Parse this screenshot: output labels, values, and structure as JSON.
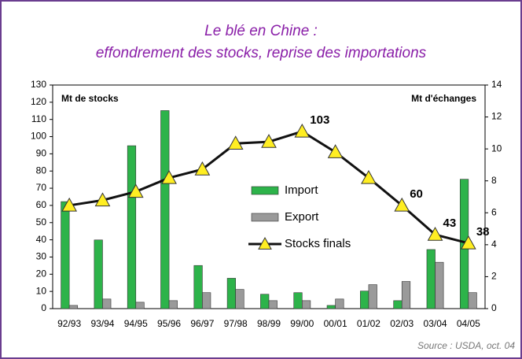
{
  "chart_data": {
    "type": "bar-line",
    "title": "Le blé en Chine :",
    "subtitle": "effondrement des stocks, reprise des importations",
    "ylabel": "Mt de stocks",
    "y2label": "Mt d'échanges",
    "source": "Source : USDA, oct. 04",
    "categories": [
      "92/93",
      "93/94",
      "94/95",
      "95/96",
      "96/97",
      "97/98",
      "98/99",
      "99/00",
      "00/01",
      "01/02",
      "02/03",
      "03/04",
      "04/05"
    ],
    "series": [
      {
        "name": "Import",
        "type": "bar",
        "axis": "y2",
        "color": "#2db34a",
        "values": [
          6.7,
          4.3,
          10.2,
          12.4,
          2.7,
          1.9,
          0.9,
          1.0,
          0.2,
          1.1,
          0.5,
          3.7,
          8.1
        ]
      },
      {
        "name": "Export",
        "type": "bar",
        "axis": "y2",
        "color": "#9a9a9a",
        "values": [
          0.2,
          0.6,
          0.4,
          0.5,
          1.0,
          1.2,
          0.5,
          0.5,
          0.6,
          1.5,
          1.7,
          2.9,
          1.0
        ]
      },
      {
        "name": "Stocks finals",
        "type": "line",
        "axis": "y",
        "color": "#111111",
        "marker_color": "#ffee22",
        "values": [
          60,
          63,
          68,
          76,
          81,
          96,
          97,
          103,
          91,
          76,
          60,
          43,
          38
        ]
      }
    ],
    "labeled_points": [
      7,
      10,
      11,
      12
    ],
    "ylim": [
      0,
      130
    ],
    "yticks": [
      0,
      10,
      20,
      30,
      40,
      50,
      60,
      70,
      80,
      90,
      100,
      110,
      120,
      130
    ],
    "y2lim": [
      0,
      14
    ],
    "y2ticks": [
      0,
      2,
      4,
      6,
      8,
      10,
      12,
      14
    ]
  }
}
